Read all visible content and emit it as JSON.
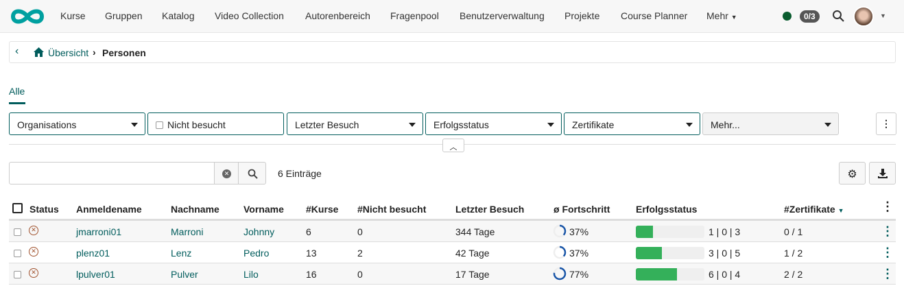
{
  "nav": {
    "items": [
      "Kurse",
      "Gruppen",
      "Katalog",
      "Video Collection",
      "Autorenbereich",
      "Fragenpool",
      "Benutzerverwaltung",
      "Projekte",
      "Course Planner",
      "Mehr"
    ],
    "badge": "0/3",
    "status_color": "#0a5c2f"
  },
  "breadcrumb": {
    "home": "Übersicht",
    "current": "Personen"
  },
  "tabs": [
    "Alle"
  ],
  "filters": {
    "organisations": "Organisations",
    "not_visited": "Nicht besucht",
    "last_visit": "Letzter Besuch",
    "success": "Erfolgsstatus",
    "certificates": "Zertifikate",
    "more": "Mehr..."
  },
  "search": {
    "placeholder": "",
    "count": "6 Einträge"
  },
  "table": {
    "headers": [
      "Status",
      "Anmeldename",
      "Nachname",
      "Vorname",
      "#Kurse",
      "#Nicht besucht",
      "Letzter Besuch",
      "ø Fortschritt",
      "Erfolgsstatus",
      "#Zertifikate"
    ],
    "rows": [
      {
        "login": "jmarroni01",
        "last": "Marroni",
        "first": "Johnny",
        "courses": "6",
        "not_visited": "0",
        "last_visit": "344 Tage",
        "progress": "37%",
        "progress_value": 37,
        "success": "1 | 0 | 3",
        "success_fraction": 0.25,
        "certs": "0 / 1"
      },
      {
        "login": "plenz01",
        "last": "Lenz",
        "first": "Pedro",
        "courses": "13",
        "not_visited": "2",
        "last_visit": "42 Tage",
        "progress": "37%",
        "progress_value": 37,
        "success": "3 | 0 | 5",
        "success_fraction": 0.375,
        "certs": "1 / 2"
      },
      {
        "login": "lpulver01",
        "last": "Pulver",
        "first": "Lilo",
        "courses": "16",
        "not_visited": "0",
        "last_visit": "17 Tage",
        "progress": "77%",
        "progress_value": 77,
        "success": "6 | 0 | 4",
        "success_fraction": 0.6,
        "certs": "2 / 2"
      }
    ]
  },
  "colors": {
    "accent": "#005c5c",
    "logo": "#00a0a0",
    "success_bar": "#34b05a",
    "progress_ring": "#1a56a8"
  }
}
